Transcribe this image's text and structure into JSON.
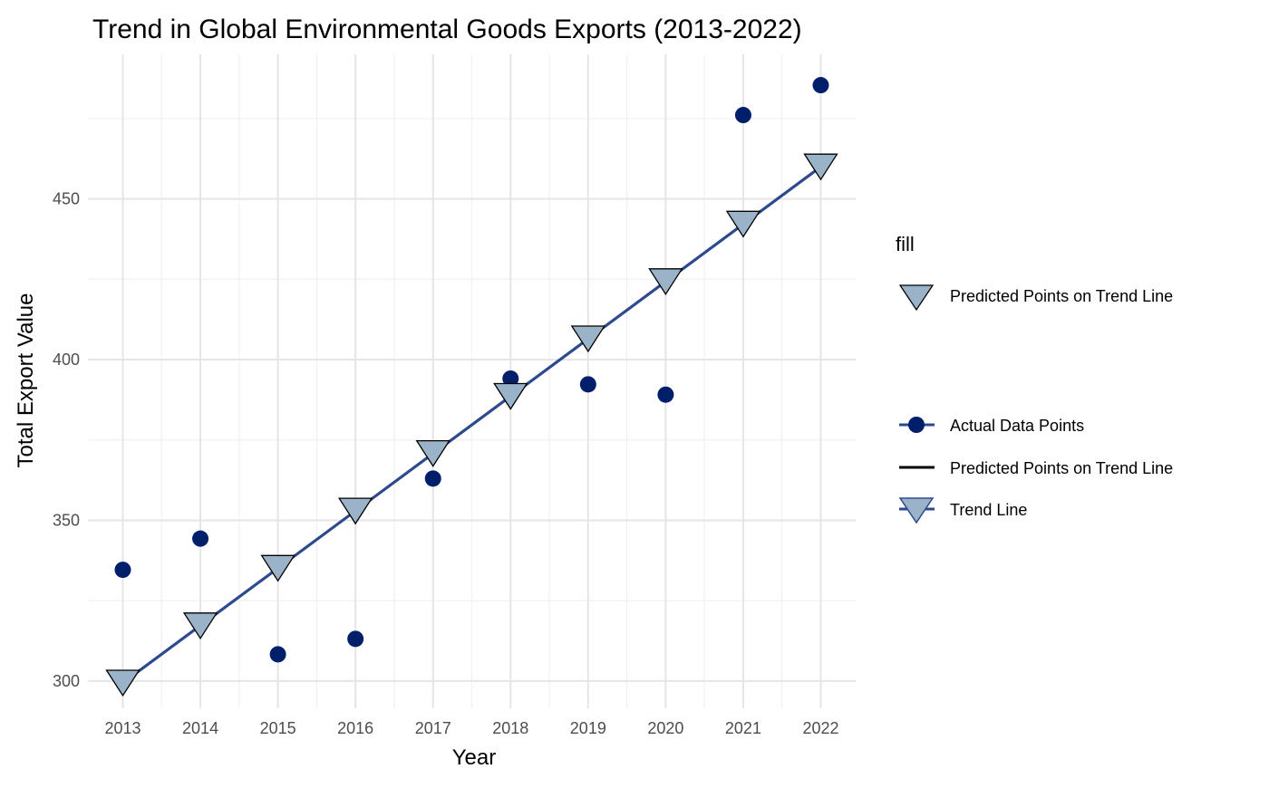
{
  "chart_data": {
    "type": "scatter",
    "title": "Trend in Global Environmental Goods Exports (2013-2022)",
    "xlabel": "Year",
    "ylabel": "Total Export Value",
    "x": [
      2013,
      2014,
      2015,
      2016,
      2017,
      2018,
      2019,
      2020,
      2021,
      2022
    ],
    "x_tick_labels": [
      "2013",
      "2014",
      "2015",
      "2016",
      "2017",
      "2018",
      "2019",
      "2020",
      "2021",
      "2022"
    ],
    "y_ticks": [
      300,
      350,
      400,
      450
    ],
    "y_tick_labels": [
      "300",
      "350",
      "400",
      "450"
    ],
    "xlim": [
      2012.55,
      2022.45
    ],
    "ylim": [
      291.5,
      495
    ],
    "grid": true,
    "legend_position": "right",
    "series": [
      {
        "name": "Actual Data Points",
        "kind": "points",
        "color": "#001f6b",
        "values": [
          334.6,
          344.3,
          308.3,
          313.1,
          363.0,
          394.1,
          392.3,
          389.1,
          476.1,
          485.4
        ]
      },
      {
        "name": "Trend Line",
        "kind": "line",
        "color": "#2e4a8f",
        "values": [
          299.4,
          317.2,
          335.1,
          352.9,
          370.8,
          388.6,
          406.5,
          424.3,
          442.2,
          460.0
        ]
      },
      {
        "name": "Predicted Points on Trend Line",
        "kind": "triangles",
        "color": "#9ab3c8",
        "values": [
          299.4,
          317.2,
          335.1,
          352.9,
          370.8,
          388.6,
          406.5,
          424.3,
          442.2,
          460.0
        ]
      }
    ],
    "legend": {
      "fill_title": "fill",
      "fill_items": [
        "Predicted Points on Trend Line"
      ],
      "items": [
        "Actual Data Points",
        "Predicted Points on Trend Line",
        "Trend Line"
      ]
    }
  }
}
